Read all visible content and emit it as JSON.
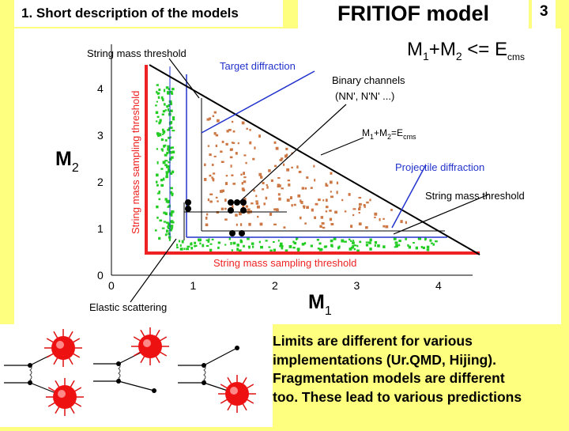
{
  "header": {
    "section_title": "1. Short description of the models",
    "slide_title": "FRITIOF model",
    "slide_number": "3"
  },
  "diagram": {
    "condition_main": "M",
    "condition_sub1": "1",
    "condition_plus": "+M",
    "condition_sub2": "2",
    "condition_rest": " <= E",
    "condition_energy_sub": "cms",
    "y_axis_main": "M",
    "y_axis_sub": "2",
    "x_axis_main": "M",
    "x_axis_sub": "1",
    "x_ticks": [
      "0",
      "1",
      "2",
      "3",
      "4"
    ],
    "y_ticks": [
      "0",
      "1",
      "2",
      "3",
      "4"
    ],
    "labels": {
      "string_mass_threshold_top": "String mass threshold",
      "target_diffraction": "Target diffraction",
      "binary_channels_line1": "Binary channels",
      "binary_channels_line2": "(NN', N'N' ...)",
      "kinematic_boundary_main": "M",
      "kinematic_boundary_sub1": "1",
      "kinematic_boundary_plus": "+M",
      "kinematic_boundary_sub2": "2",
      "kinematic_boundary_eq": "=E",
      "kinematic_boundary_sub_energy": "cms",
      "projectile_diffraction": "Projectile diffraction",
      "string_mass_threshold_right": "String mass threshold",
      "sampling_threshold_vertical": "String mass sampling threshold",
      "sampling_threshold_horizontal": "String mass sampling threshold",
      "elastic_scattering": "Elastic scattering"
    },
    "colors": {
      "red": "#ee2222",
      "blue": "#2233cc",
      "green_points": "#22cc22",
      "orange_points": "#cc7744"
    }
  },
  "note": {
    "lines": [
      "Limits are different for various",
      " implementations (Ur.QMD, Hijing).",
      " Fragmentation models are different",
      " too. These lead to various predictions"
    ]
  }
}
